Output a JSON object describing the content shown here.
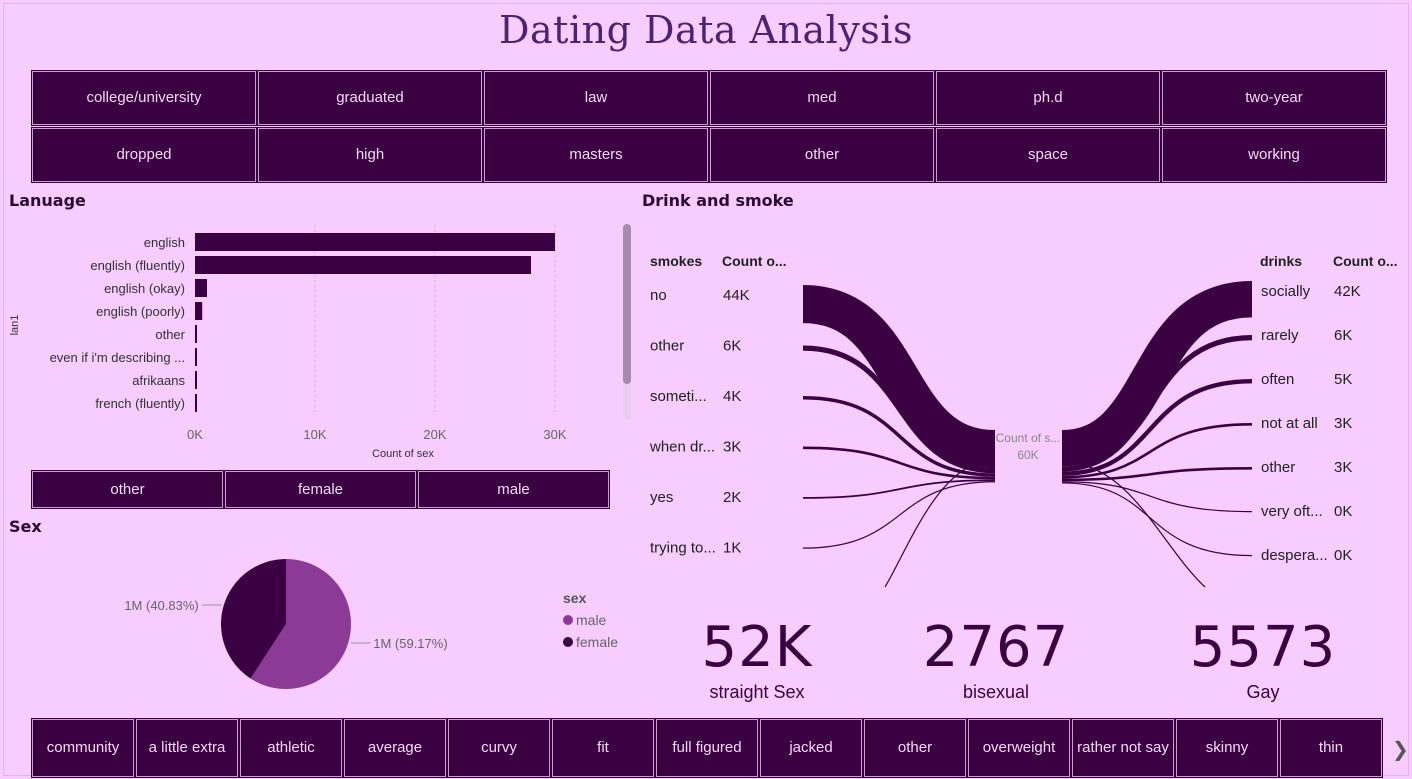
{
  "title": "Dating Data Analysis",
  "education_row1": [
    "college/university",
    "graduated",
    "law",
    "med",
    "ph.d",
    "two-year"
  ],
  "education_row2": [
    "dropped",
    "high",
    "masters",
    "other",
    "space",
    "working"
  ],
  "sex_slicer": [
    "other",
    "female",
    "male"
  ],
  "body_type": [
    "community",
    "a little extra",
    "athletic",
    "average",
    "curvy",
    "fit",
    "full figured",
    "jacked",
    "other",
    "overweight",
    "rather not say",
    "skinny",
    "thin"
  ],
  "language_title": "Lanuage",
  "drink_title": "Drink and smoke",
  "sex_title": "Sex",
  "chart_data": [
    {
      "type": "bar",
      "orientation": "horizontal",
      "categories": [
        "english",
        "english (fluently)",
        "english (okay)",
        "english (poorly)",
        "other",
        "even if i'm describing ...",
        "afrikaans",
        "french (fluently)"
      ],
      "values": [
        30000,
        28000,
        1000,
        600,
        80,
        60,
        50,
        40
      ],
      "xlabel": "Count of sex",
      "ylabel": "lan1",
      "xticks": [
        "0K",
        "10K",
        "20K",
        "30K"
      ],
      "xlim": [
        0,
        35000
      ],
      "color": "#3b0041"
    },
    {
      "type": "sankey",
      "center_label": "Count of s...",
      "center_value": "60K",
      "left_headers": [
        "smokes",
        "Count o..."
      ],
      "left": [
        {
          "label": "no",
          "value": "44K",
          "amount": 44000
        },
        {
          "label": "other",
          "value": "6K",
          "amount": 6000
        },
        {
          "label": "someti...",
          "value": "4K",
          "amount": 4000
        },
        {
          "label": "when dr...",
          "value": "3K",
          "amount": 3000
        },
        {
          "label": "yes",
          "value": "2K",
          "amount": 2000
        },
        {
          "label": "trying to...",
          "value": "1K",
          "amount": 1000
        }
      ],
      "right_headers": [
        "drinks",
        "Count o..."
      ],
      "right": [
        {
          "label": "socially",
          "value": "42K",
          "amount": 42000
        },
        {
          "label": "rarely",
          "value": "6K",
          "amount": 6000
        },
        {
          "label": "often",
          "value": "5K",
          "amount": 5000
        },
        {
          "label": "not at all",
          "value": "3K",
          "amount": 3000
        },
        {
          "label": "other",
          "value": "3K",
          "amount": 3000
        },
        {
          "label": "very oft...",
          "value": "0K",
          "amount": 400
        },
        {
          "label": "despera...",
          "value": "0K",
          "amount": 300
        }
      ]
    },
    {
      "type": "pie",
      "legend_title": "sex",
      "slices": [
        {
          "name": "male",
          "value": 59.17,
          "label": "1M (59.17%)",
          "color": "#8b3a96"
        },
        {
          "name": "female",
          "value": 40.83,
          "label": "1M (40.83%)",
          "color": "#3b0041"
        }
      ]
    }
  ],
  "kpis": [
    {
      "value": "52K",
      "label": "straight Sex"
    },
    {
      "value": "2767",
      "label": "bisexual"
    },
    {
      "value": "5573",
      "label": "Gay"
    }
  ],
  "next_icon": "chevron-right-icon"
}
